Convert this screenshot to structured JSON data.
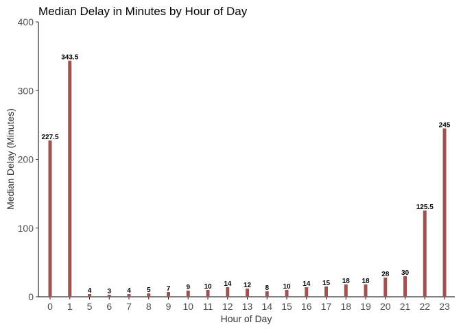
{
  "chart_data": {
    "type": "bar",
    "title": "Median Delay in Minutes by Hour of Day",
    "xlabel": "Hour of Day",
    "ylabel": "Median Delay (Minutes)",
    "categories": [
      "0",
      "1",
      "5",
      "6",
      "7",
      "8",
      "9",
      "10",
      "11",
      "12",
      "13",
      "14",
      "15",
      "16",
      "17",
      "18",
      "19",
      "20",
      "21",
      "22",
      "23"
    ],
    "values": [
      227.5,
      343.5,
      4,
      3,
      4,
      5,
      7,
      9,
      10,
      14,
      12,
      8,
      10,
      14,
      15,
      18,
      18,
      28,
      30,
      125.5,
      245
    ],
    "data_labels": [
      "227.5",
      "343.5",
      "4",
      "3",
      "4",
      "5",
      "7",
      "9",
      "10",
      "14",
      "12",
      "8",
      "10",
      "14",
      "15",
      "18",
      "18",
      "28",
      "30",
      "125.5",
      "245"
    ],
    "ylim": [
      0,
      400
    ],
    "yticks": [
      0,
      100,
      200,
      300,
      400
    ],
    "ytick_labels": [
      "0",
      "100",
      "200",
      "300",
      "400"
    ],
    "grid": false,
    "legend": "none",
    "bar_color": "#a0524f"
  }
}
